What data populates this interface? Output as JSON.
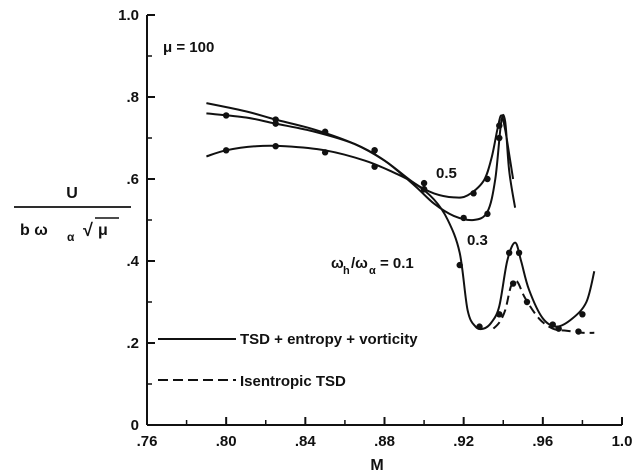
{
  "chart_data": {
    "type": "line",
    "xlabel": "M",
    "ylabel_top": "U",
    "ylabel_bottom": "b ω",
    "ylabel_sub": "α",
    "ylabel_root": "√",
    "ylabel_mu": "μ",
    "xlim": [
      0.76,
      1.0
    ],
    "ylim": [
      0,
      1.0
    ],
    "x_ticks": [
      0.76,
      0.8,
      0.84,
      0.88,
      0.92,
      0.96,
      1.0
    ],
    "x_tick_labels": [
      ".76",
      ".80",
      ".84",
      ".88",
      ".92",
      ".96",
      "1.0"
    ],
    "y_ticks": [
      0,
      0.2,
      0.4,
      0.6,
      0.8,
      1.0
    ],
    "y_tick_labels": [
      "0",
      ".2",
      ".4",
      ".6",
      ".8",
      "1.0"
    ],
    "grid": false,
    "annotations": {
      "mu": "μ = 100",
      "label_05": "0.5",
      "label_03": "0.3",
      "omega_ratio": "ω",
      "omega_h_sub": "h",
      "omega_slash": "/ω",
      "omega_alpha_sub": "α",
      "omega_value": "= 0.1"
    },
    "legend": [
      {
        "label": "TSD + entropy + vorticity",
        "style": "solid"
      },
      {
        "label": "Isentropic TSD",
        "style": "dashed"
      }
    ],
    "series": [
      {
        "label": "0.5",
        "style": "solid",
        "x": [
          0.79,
          0.81,
          0.825,
          0.845,
          0.865,
          0.88,
          0.895,
          0.905,
          0.915,
          0.922,
          0.93,
          0.934,
          0.937,
          0.939,
          0.941,
          0.943,
          0.945
        ],
        "y": [
          0.785,
          0.765,
          0.745,
          0.72,
          0.685,
          0.645,
          0.59,
          0.565,
          0.555,
          0.56,
          0.595,
          0.65,
          0.72,
          0.755,
          0.72,
          0.66,
          0.6
        ],
        "markers_x": [
          0.825,
          0.85,
          0.875,
          0.9,
          0.925,
          0.932,
          0.938
        ],
        "markers_y": [
          0.745,
          0.715,
          0.67,
          0.59,
          0.565,
          0.6,
          0.73
        ]
      },
      {
        "label": "0.3",
        "style": "solid",
        "x": [
          0.79,
          0.81,
          0.825,
          0.845,
          0.865,
          0.88,
          0.895,
          0.905,
          0.915,
          0.925,
          0.932,
          0.936,
          0.939,
          0.941,
          0.943,
          0.946
        ],
        "y": [
          0.76,
          0.75,
          0.735,
          0.715,
          0.685,
          0.645,
          0.585,
          0.54,
          0.51,
          0.5,
          0.52,
          0.6,
          0.74,
          0.74,
          0.62,
          0.53
        ],
        "markers_x": [
          0.8,
          0.825,
          0.85,
          0.875,
          0.9,
          0.92,
          0.932,
          0.938
        ],
        "markers_y": [
          0.755,
          0.735,
          0.715,
          0.67,
          0.575,
          0.505,
          0.515,
          0.7
        ]
      },
      {
        "label": "0.1",
        "style": "solid",
        "x": [
          0.79,
          0.8,
          0.815,
          0.83,
          0.85,
          0.87,
          0.885,
          0.895,
          0.905,
          0.912,
          0.918,
          0.922,
          0.926,
          0.93,
          0.934,
          0.938,
          0.942,
          0.946,
          0.949,
          0.953,
          0.96,
          0.967,
          0.975,
          0.982,
          0.986
        ],
        "y": [
          0.655,
          0.67,
          0.68,
          0.68,
          0.67,
          0.645,
          0.615,
          0.59,
          0.55,
          0.5,
          0.42,
          0.28,
          0.24,
          0.235,
          0.25,
          0.29,
          0.4,
          0.445,
          0.4,
          0.33,
          0.26,
          0.24,
          0.26,
          0.3,
          0.375
        ],
        "markers_x": [
          0.8,
          0.825,
          0.85,
          0.875,
          0.9,
          0.918,
          0.928,
          0.938,
          0.943,
          0.948,
          0.965,
          0.98
        ],
        "markers_y": [
          0.67,
          0.68,
          0.665,
          0.63,
          0.575,
          0.39,
          0.24,
          0.27,
          0.42,
          0.42,
          0.245,
          0.27
        ]
      },
      {
        "label": "Isentropic 0.1",
        "style": "dashed",
        "x": [
          0.935,
          0.938,
          0.941,
          0.944,
          0.947,
          0.951,
          0.958,
          0.965,
          0.972,
          0.98,
          0.986
        ],
        "y": [
          0.235,
          0.25,
          0.28,
          0.34,
          0.35,
          0.31,
          0.26,
          0.235,
          0.23,
          0.225,
          0.225
        ],
        "markers_x": [
          0.945,
          0.952,
          0.968,
          0.978
        ],
        "markers_y": [
          0.345,
          0.3,
          0.235,
          0.228
        ]
      }
    ]
  }
}
